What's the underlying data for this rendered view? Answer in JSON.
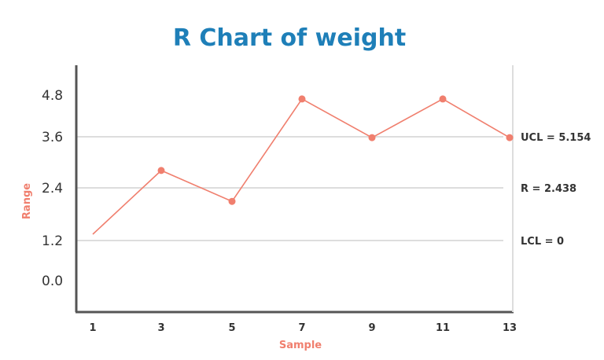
{
  "chart_data": {
    "type": "line",
    "title": "R Chart of weight",
    "xlabel": "Sample",
    "ylabel": "Range",
    "x_ticks": [
      "1",
      "3",
      "5",
      "7",
      "9",
      "11",
      "13"
    ],
    "y_ticks": [
      "0.0",
      "1.2",
      "2.4",
      "3.6",
      "4.8"
    ],
    "x": [
      1,
      3,
      5,
      7,
      9,
      11,
      13
    ],
    "values": [
      1.2,
      2.85,
      2.05,
      4.7,
      3.7,
      4.7,
      3.7
    ],
    "reference_lines": [
      {
        "label": "UCL = 5.154"
      },
      {
        "label": "R = 2.438"
      },
      {
        "label": "LCL = 0"
      }
    ],
    "grid": true,
    "colors": {
      "title": "#1e7fb8",
      "series": "#f07f6e",
      "axis": "#555555",
      "grid": "#dddddd",
      "axis_label": "#f07f6e",
      "tick": "#333333"
    }
  }
}
